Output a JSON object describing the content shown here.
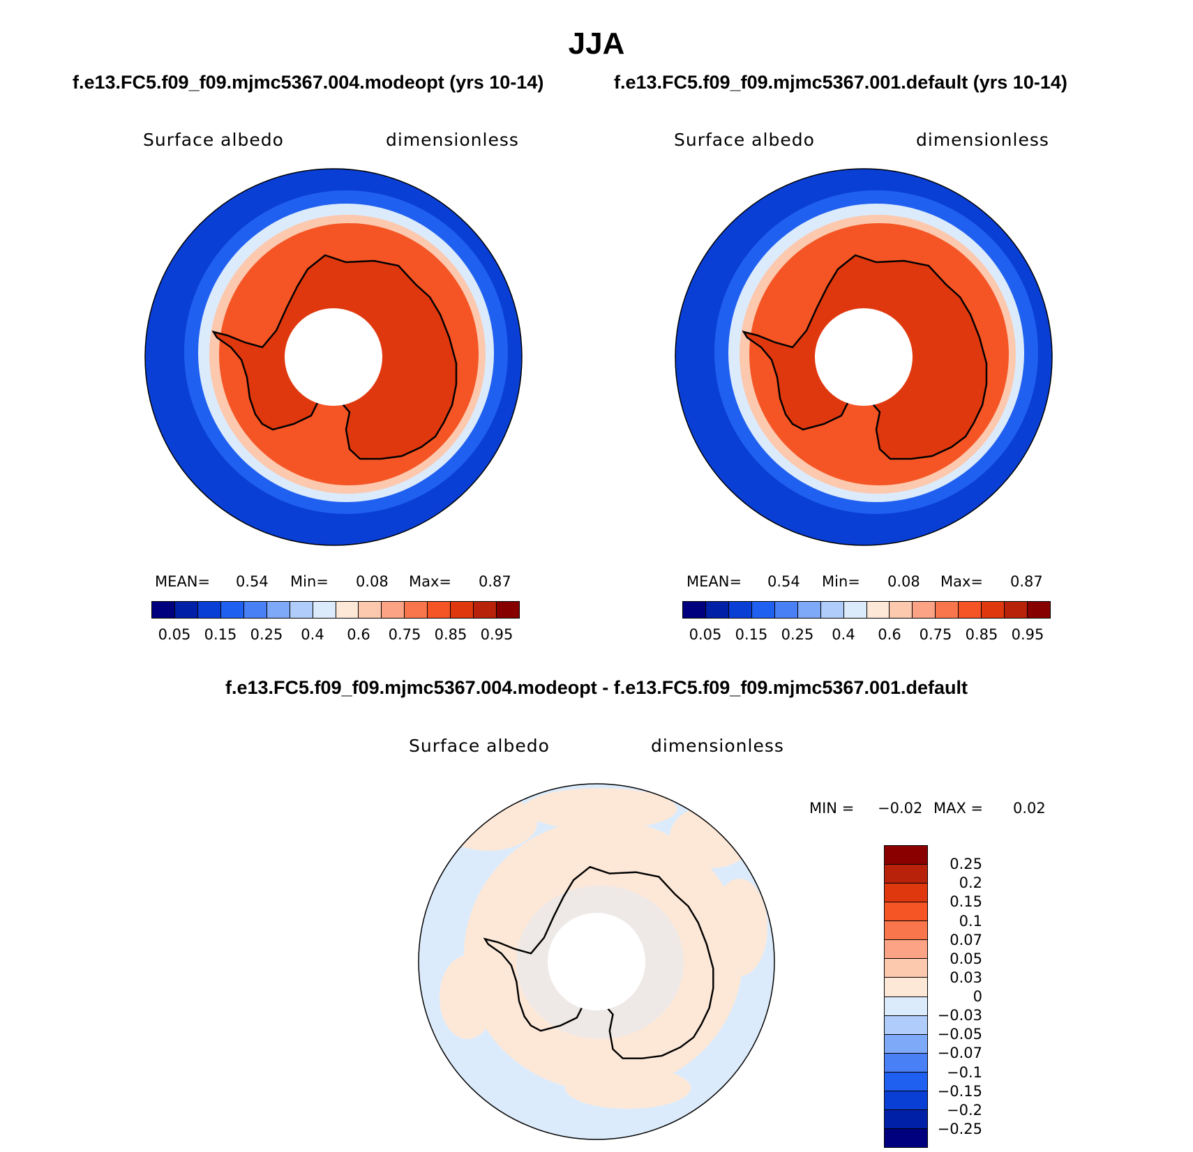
{
  "figure": {
    "title": "JJA",
    "left_case": "f.e13.FC5.f09_f09.mjmc5367.004.modeopt (yrs 10-14)",
    "right_case": "f.e13.FC5.f09_f09.mjmc5367.001.default (yrs 10-14)",
    "diff_case": "f.e13.FC5.f09_f09.mjmc5367.004.modeopt - f.e13.FC5.f09_f09.mjmc5367.001.default"
  },
  "panels": [
    {
      "variable": "Surface albedo",
      "units": "dimensionless",
      "stats": {
        "mean_label": "MEAN=",
        "mean": "0.54",
        "min_label": "Min=",
        "min": "0.08",
        "max_label": "Max=",
        "max": "0.87"
      }
    },
    {
      "variable": "Surface albedo",
      "units": "dimensionless",
      "stats": {
        "mean_label": "MEAN=",
        "mean": "0.54",
        "min_label": "Min=",
        "min": "0.08",
        "max_label": "Max=",
        "max": "0.87"
      }
    }
  ],
  "diff_panel": {
    "variable": "Surface albedo",
    "units": "dimensionless",
    "min_label": "MIN =",
    "min": "−0.02",
    "max_label": "MAX =",
    "max": "0.02"
  },
  "colorbar_abs": {
    "colors": [
      "#00007f",
      "#0020a8",
      "#0a3fd6",
      "#2060f0",
      "#4a80f5",
      "#7ea8f8",
      "#b0ccfa",
      "#dcebfb",
      "#fde8d8",
      "#fcc8ae",
      "#fba384",
      "#f9764c",
      "#f55525",
      "#e0380e",
      "#b8210a",
      "#860000"
    ],
    "ticks": [
      "0.05",
      "0.15",
      "0.25",
      "0.4",
      "0.6",
      "0.75",
      "0.85",
      "0.95"
    ]
  },
  "colorbar_diff": {
    "colors": [
      "#8a0000",
      "#b8210a",
      "#e0380e",
      "#f55525",
      "#f9764c",
      "#fba384",
      "#fcc8ae",
      "#fde8d8",
      "#dcebfb",
      "#b0ccfa",
      "#7ea8f8",
      "#4a80f5",
      "#2060f0",
      "#0a3fd6",
      "#0020a8",
      "#00007f"
    ],
    "ticks": [
      "0.25",
      "0.2",
      "0.15",
      "0.1",
      "0.07",
      "0.05",
      "0.03",
      "0",
      "−0.03",
      "−0.05",
      "−0.07",
      "−0.1",
      "−0.15",
      "−0.2",
      "−0.25"
    ]
  },
  "map_colors": {
    "ocean_outer": "#0a3fd6",
    "ocean_mid": "#2060f0",
    "ice_edge": "#dcebfb",
    "ice_pale": "#fcc8ae",
    "ice_orange": "#f55525",
    "land": "#e0380e",
    "diff_neg": "#dcebfb",
    "diff_pos": "#fde8d8",
    "coast": "#000000"
  }
}
